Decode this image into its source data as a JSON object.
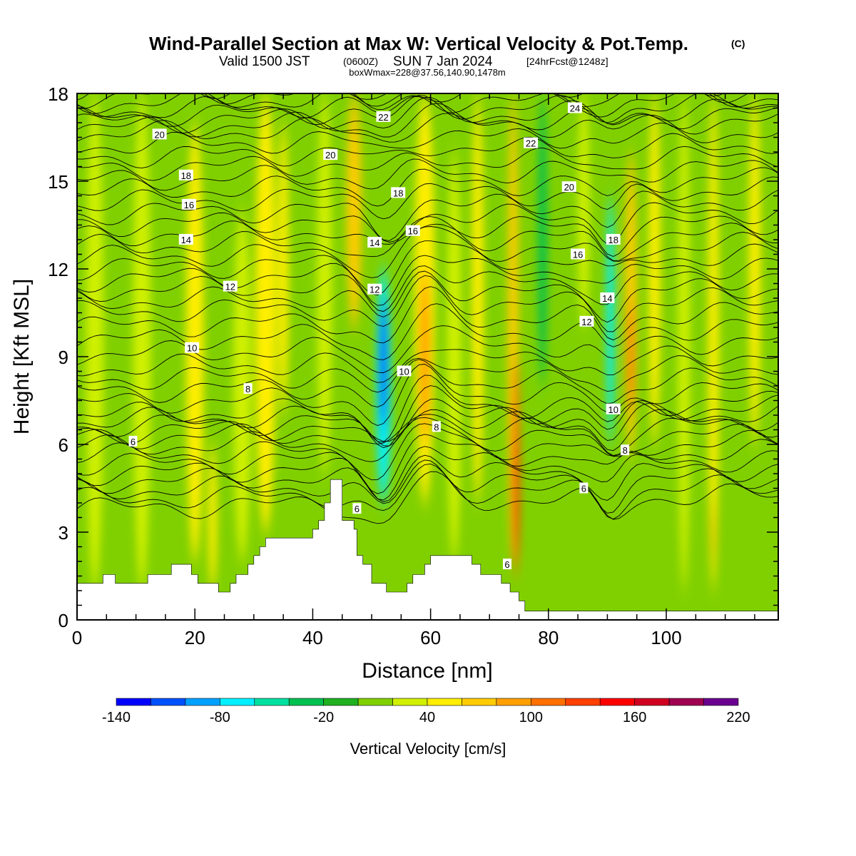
{
  "title": {
    "main": "Wind-Parallel Section at Max W: Vertical Velocity & Pot.Temp.",
    "copyright": "(C)",
    "valid_prefix": "Valid 1500 JST",
    "valid_utc": "(0600Z)",
    "valid_date": "SUN 7 Jan 2024",
    "forecast": "[24hrFcst@1248z]",
    "box_info": "boxWmax=228@37.56,140.90,1478m"
  },
  "chart_data": {
    "type": "heatmap",
    "xlabel": "Distance [nm]",
    "ylabel": "Height [Kft MSL]",
    "xlim": [
      0,
      119
    ],
    "ylim": [
      0,
      18
    ],
    "x_ticks": [
      0,
      20,
      40,
      60,
      80,
      100
    ],
    "y_ticks": [
      0,
      3,
      6,
      9,
      12,
      15,
      18
    ],
    "x_tick_labels": [
      "0",
      "20",
      "40",
      "60",
      "80",
      "100"
    ],
    "y_tick_labels": [
      "0",
      "3",
      "6",
      "9",
      "12",
      "15",
      "18"
    ],
    "colorbar": {
      "title": "Vertical Velocity [cm/s]",
      "min": -140,
      "max": 220,
      "step": 20,
      "labels": [
        "-140",
        "-80",
        "-20",
        "40",
        "100",
        "160",
        "220"
      ],
      "label_values": [
        -140,
        -80,
        -20,
        40,
        100,
        160,
        220
      ],
      "colors": [
        "#0000ff",
        "#0050ff",
        "#00a0ff",
        "#00f0ff",
        "#00e0a0",
        "#00c050",
        "#20b020",
        "#80d000",
        "#d0f000",
        "#ffee00",
        "#ffcc00",
        "#ffa000",
        "#ff7000",
        "#ff4000",
        "#ff0000",
        "#d00020",
        "#a00050",
        "#6a0090"
      ]
    },
    "background_velocity": 0,
    "velocity_bands": [
      {
        "x": 3,
        "width": 3,
        "y0": 1,
        "y1": 18,
        "value": 20
      },
      {
        "x": 11,
        "width": 3,
        "y0": 1,
        "y1": 18,
        "value": 20
      },
      {
        "x": 20,
        "width": 3,
        "y0": 2,
        "y1": 17,
        "value": 40
      },
      {
        "x": 23,
        "width": 1.5,
        "y0": 1,
        "y1": 6,
        "value": 50
      },
      {
        "x": 28,
        "width": 3,
        "y0": 2,
        "y1": 14,
        "value": 35
      },
      {
        "x": 32,
        "width": 3.5,
        "y0": 3,
        "y1": 18,
        "value": 50
      },
      {
        "x": 35,
        "width": 1.8,
        "y0": 7,
        "y1": 17,
        "value": 55
      },
      {
        "x": 42,
        "width": 2.5,
        "y0": 5,
        "y1": 18,
        "value": 20
      },
      {
        "x": 47,
        "width": 2.5,
        "y0": 10,
        "y1": 18,
        "value": 60
      },
      {
        "x": 52,
        "width": 2.5,
        "y0": 4,
        "y1": 12,
        "value": -70
      },
      {
        "x": 52,
        "width": 1.3,
        "y0": 6.5,
        "y1": 11,
        "value": -110
      },
      {
        "x": 59,
        "width": 3.5,
        "y0": 4,
        "y1": 18,
        "value": 55
      },
      {
        "x": 59,
        "width": 1.8,
        "y0": 6,
        "y1": 12,
        "value": 80
      },
      {
        "x": 64,
        "width": 2.5,
        "y0": 2,
        "y1": 16,
        "value": 20
      },
      {
        "x": 68,
        "width": 2,
        "y0": 4,
        "y1": 18,
        "value": 40
      },
      {
        "x": 74,
        "width": 1.8,
        "y0": 2,
        "y1": 18,
        "value": 60
      },
      {
        "x": 74.5,
        "width": 1.2,
        "y0": 1.5,
        "y1": 9,
        "value": 100
      },
      {
        "x": 74.5,
        "width": 0.8,
        "y0": 2,
        "y1": 6.5,
        "value": 150
      },
      {
        "x": 79,
        "width": 1.5,
        "y0": 8,
        "y1": 18,
        "value": -30
      },
      {
        "x": 86,
        "width": 2,
        "y0": 10,
        "y1": 18,
        "value": 35
      },
      {
        "x": 90.5,
        "width": 1.3,
        "y0": 6,
        "y1": 14.5,
        "value": -70
      },
      {
        "x": 94,
        "width": 2,
        "y0": 5.5,
        "y1": 16,
        "value": 70
      },
      {
        "x": 94,
        "width": 1,
        "y0": 7,
        "y1": 11,
        "value": 100
      },
      {
        "x": 98,
        "width": 2,
        "y0": 6,
        "y1": 18,
        "value": 40
      },
      {
        "x": 103,
        "width": 2,
        "y0": 1,
        "y1": 18,
        "value": 25
      },
      {
        "x": 108,
        "width": 1.8,
        "y0": 1,
        "y1": 18,
        "value": 50
      },
      {
        "x": 108,
        "width": 0.8,
        "y0": 2,
        "y1": 4,
        "value": 70
      },
      {
        "x": 115,
        "width": 2,
        "y0": 6,
        "y1": 18,
        "value": 45
      }
    ],
    "terrain_surface": [
      [
        0,
        1.25
      ],
      [
        4.4,
        1.25
      ],
      [
        4.4,
        1.55
      ],
      [
        6.5,
        1.55
      ],
      [
        6.5,
        1.25
      ],
      [
        12,
        1.25
      ],
      [
        12,
        1.55
      ],
      [
        16,
        1.55
      ],
      [
        16,
        1.9
      ],
      [
        19.4,
        1.9
      ],
      [
        19.4,
        1.55
      ],
      [
        20.5,
        1.55
      ],
      [
        20.5,
        1.25
      ],
      [
        24,
        1.25
      ],
      [
        24,
        0.95
      ],
      [
        26,
        0.95
      ],
      [
        26,
        1.25
      ],
      [
        27,
        1.25
      ],
      [
        27,
        1.55
      ],
      [
        29,
        1.55
      ],
      [
        29,
        1.9
      ],
      [
        30,
        1.9
      ],
      [
        30,
        2.2
      ],
      [
        31,
        2.2
      ],
      [
        31,
        2.5
      ],
      [
        32,
        2.5
      ],
      [
        32,
        2.8
      ],
      [
        40,
        2.8
      ],
      [
        40,
        3.1
      ],
      [
        41,
        3.1
      ],
      [
        41,
        3.4
      ],
      [
        42,
        3.4
      ],
      [
        42,
        4.0
      ],
      [
        43,
        4.0
      ],
      [
        43,
        4.8
      ],
      [
        45,
        4.8
      ],
      [
        45,
        3.4
      ],
      [
        47,
        3.4
      ],
      [
        47,
        3.1
      ],
      [
        47.5,
        3.1
      ],
      [
        47.5,
        2.2
      ],
      [
        48.5,
        2.2
      ],
      [
        48.5,
        1.9
      ],
      [
        50,
        1.9
      ],
      [
        50,
        1.25
      ],
      [
        52.5,
        1.25
      ],
      [
        52.5,
        0.95
      ],
      [
        56,
        0.95
      ],
      [
        56,
        1.25
      ],
      [
        57,
        1.25
      ],
      [
        57,
        1.55
      ],
      [
        59,
        1.55
      ],
      [
        59,
        1.9
      ],
      [
        60,
        1.9
      ],
      [
        60,
        2.2
      ],
      [
        67,
        2.2
      ],
      [
        67,
        1.9
      ],
      [
        68.5,
        1.9
      ],
      [
        68.5,
        1.55
      ],
      [
        72,
        1.55
      ],
      [
        72,
        1.25
      ],
      [
        73.5,
        1.25
      ],
      [
        73.5,
        0.95
      ],
      [
        75,
        0.95
      ],
      [
        75,
        0.65
      ],
      [
        76,
        0.65
      ],
      [
        76,
        0.3
      ],
      [
        119,
        0.3
      ]
    ],
    "theta_contours": [
      {
        "value": 6,
        "x0": 0,
        "y0": 6.2,
        "rise": 0.0,
        "mx": 0,
        "my": 0
      },
      {
        "value": 6,
        "x0": 30,
        "y0": 4.2,
        "rise": 0.0,
        "mx": 0,
        "my": 0
      },
      {
        "value": 6,
        "x0": 80,
        "y0": 4.5,
        "rise": 0.0,
        "mx": 0,
        "my": 0
      },
      {
        "value": 8,
        "x0": 0,
        "y0": 7.0,
        "rise": 0.01,
        "mx": 0,
        "my": 0
      },
      {
        "value": 8,
        "x0": 60,
        "y0": 6.3,
        "rise": 0.0,
        "mx": 0,
        "my": 0
      },
      {
        "value": 10,
        "x0": 0,
        "y0": 8.6,
        "rise": 0.01,
        "mx": 0,
        "my": 0
      },
      {
        "value": 12,
        "x0": 0,
        "y0": 10.5,
        "rise": 0.01,
        "mx": 0,
        "my": 0
      },
      {
        "value": 14,
        "x0": 0,
        "y0": 12.0,
        "rise": 0.01,
        "mx": 0,
        "my": 0
      },
      {
        "value": 16,
        "x0": 0,
        "y0": 13.5,
        "rise": 0.01,
        "mx": 0,
        "my": 0
      },
      {
        "value": 18,
        "x0": 0,
        "y0": 15.0,
        "rise": 0.01,
        "mx": 0,
        "my": 0
      },
      {
        "value": 20,
        "x0": 0,
        "y0": 16.6,
        "rise": 0.01,
        "mx": 0,
        "my": 0
      },
      {
        "value": 22,
        "x0": 0,
        "y0": 17.4,
        "rise": 0.01,
        "mx": 0,
        "my": 0
      },
      {
        "value": 24,
        "x0": 70,
        "y0": 17.6,
        "rise": 0.0,
        "mx": 0,
        "my": 0
      }
    ],
    "contour_labels": [
      {
        "text": "20",
        "x": 14,
        "y": 16.6
      },
      {
        "text": "18",
        "x": 18.5,
        "y": 15.2
      },
      {
        "text": "16",
        "x": 19,
        "y": 14.2
      },
      {
        "text": "14",
        "x": 18.5,
        "y": 13.0
      },
      {
        "text": "12",
        "x": 26,
        "y": 11.4
      },
      {
        "text": "10",
        "x": 19.5,
        "y": 9.3
      },
      {
        "text": "8",
        "x": 29,
        "y": 7.9
      },
      {
        "text": "6",
        "x": 9.5,
        "y": 6.1
      },
      {
        "text": "20",
        "x": 43,
        "y": 15.9
      },
      {
        "text": "22",
        "x": 52,
        "y": 17.2
      },
      {
        "text": "18",
        "x": 54.5,
        "y": 14.6
      },
      {
        "text": "16",
        "x": 57,
        "y": 13.3
      },
      {
        "text": "14",
        "x": 50.5,
        "y": 12.9
      },
      {
        "text": "12",
        "x": 50.5,
        "y": 11.3
      },
      {
        "text": "10",
        "x": 55.5,
        "y": 8.5
      },
      {
        "text": "8",
        "x": 61,
        "y": 6.6
      },
      {
        "text": "6",
        "x": 47.5,
        "y": 3.8
      },
      {
        "text": "6",
        "x": 73,
        "y": 1.9
      },
      {
        "text": "24",
        "x": 84.5,
        "y": 17.5
      },
      {
        "text": "22",
        "x": 77,
        "y": 16.3
      },
      {
        "text": "20",
        "x": 83.5,
        "y": 14.8
      },
      {
        "text": "16",
        "x": 85,
        "y": 12.5
      },
      {
        "text": "18",
        "x": 91,
        "y": 13.0
      },
      {
        "text": "14",
        "x": 90,
        "y": 11.0
      },
      {
        "text": "12",
        "x": 86.5,
        "y": 10.2
      },
      {
        "text": "10",
        "x": 91,
        "y": 7.2
      },
      {
        "text": "8",
        "x": 93,
        "y": 5.8
      },
      {
        "text": "6",
        "x": 86,
        "y": 4.5
      }
    ]
  }
}
